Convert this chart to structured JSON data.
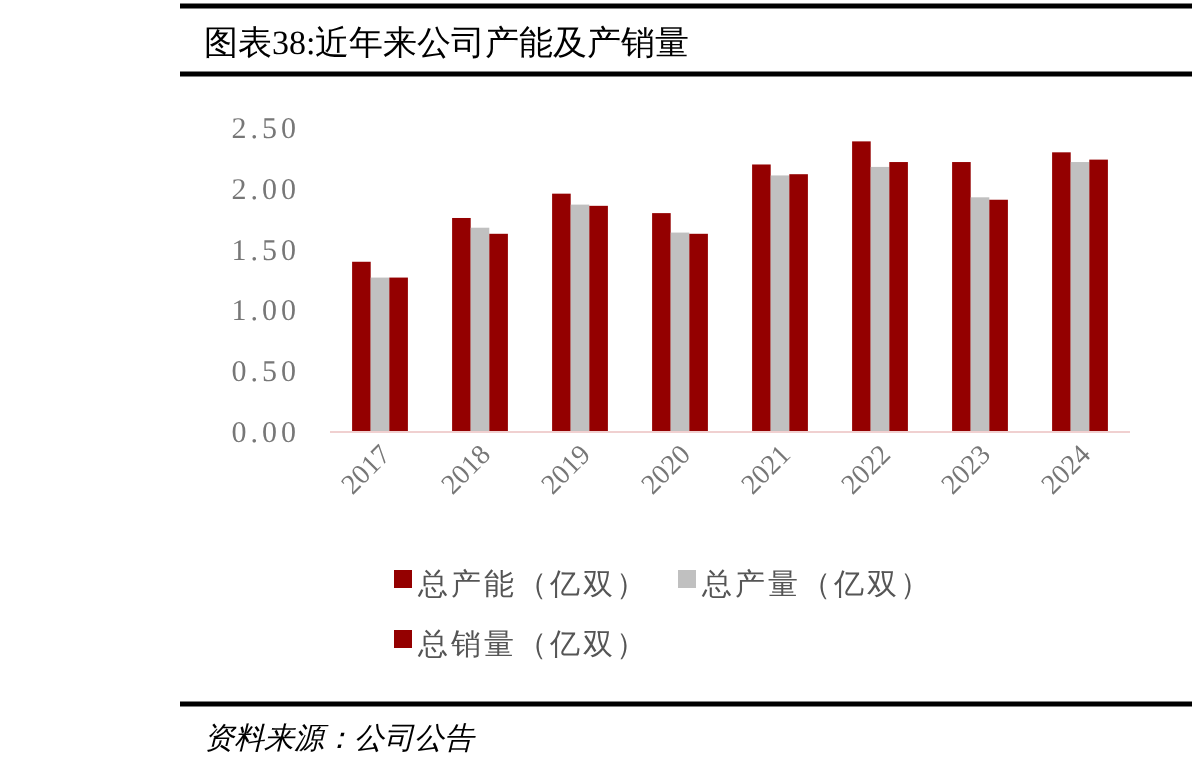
{
  "chart_data": {
    "type": "bar",
    "title": "图表38:近年来公司产能及产销量",
    "categories": [
      "2017",
      "2018",
      "2019",
      "2020",
      "2021",
      "2022",
      "2023",
      "2024"
    ],
    "series": [
      {
        "name": "总产能（亿双）",
        "color": "#940000",
        "values": [
          1.4,
          1.76,
          1.96,
          1.8,
          2.2,
          2.39,
          2.22,
          2.3
        ]
      },
      {
        "name": "总产量（亿双）",
        "color": "#c0c0c0",
        "values": [
          1.27,
          1.68,
          1.87,
          1.64,
          2.11,
          2.18,
          1.93,
          2.22
        ]
      },
      {
        "name": "总销量（亿双）",
        "color": "#940000",
        "values": [
          1.27,
          1.63,
          1.86,
          1.63,
          2.12,
          2.22,
          1.91,
          2.24
        ]
      }
    ],
    "ylim": [
      0,
      2.5
    ],
    "yticks": [
      {
        "value": 0,
        "label": "0.00"
      },
      {
        "value": 0.5,
        "label": "0.50"
      },
      {
        "value": 1,
        "label": "1.00"
      },
      {
        "value": 1.5,
        "label": "1.50"
      },
      {
        "value": 2,
        "label": "2.00"
      },
      {
        "value": 2.5,
        "label": "2.50"
      }
    ],
    "grid": false,
    "legend": "bottom",
    "annotations": [
      "资料来源：公司公告"
    ]
  }
}
